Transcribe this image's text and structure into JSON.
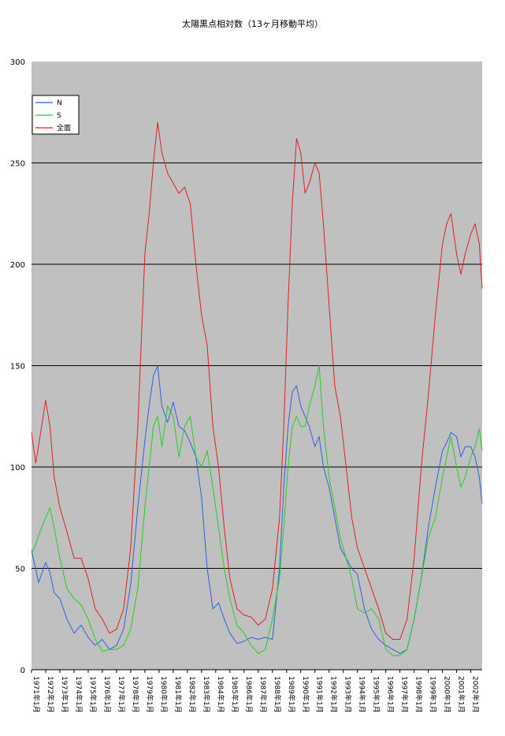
{
  "chart_data": {
    "type": "line",
    "title": "太陽黒点相対数（13ヶ月移動平均）",
    "ylim": [
      0,
      300
    ],
    "yticks": [
      "0",
      "50",
      "100",
      "150",
      "200",
      "250",
      "300"
    ],
    "x_start_year": 1971,
    "x_end_year": 2002.8,
    "x_tick_labels": [
      "1971年1月",
      "1972年1月",
      "1973年1月",
      "1974年1月",
      "1975年1月",
      "1976年1月",
      "1977年1月",
      "1978年1月",
      "1979年1月",
      "1980年1月",
      "1981年1月",
      "1982年1月",
      "1983年1月",
      "1984年1月",
      "1985年1月",
      "1986年1月",
      "1987年1月",
      "1988年1月",
      "1989年1月",
      "1990年1月",
      "1991年1月",
      "1992年1月",
      "1993年1月",
      "1994年1月",
      "1995年1月",
      "1996年1月",
      "1997年1月",
      "1998年1月",
      "1999年1月",
      "2000年1月",
      "2001年1月",
      "2002年1月"
    ],
    "x_tick_years": [
      1971,
      1972,
      1973,
      1974,
      1975,
      1976,
      1977,
      1978,
      1979,
      1980,
      1981,
      1982,
      1983,
      1984,
      1985,
      1986,
      1987,
      1988,
      1989,
      1990,
      1991,
      1992,
      1993,
      1994,
      1995,
      1996,
      1997,
      1998,
      1999,
      2000,
      2001,
      2002
    ],
    "grid": true,
    "legend_position": "top-left",
    "series": [
      {
        "name": "N",
        "color": "#3060e0",
        "x": [
          1971.0,
          1971.5,
          1972.0,
          1972.3,
          1972.6,
          1973.0,
          1973.5,
          1974.0,
          1974.5,
          1975.0,
          1975.5,
          1976.0,
          1976.5,
          1977.0,
          1977.5,
          1978.0,
          1978.5,
          1979.0,
          1979.3,
          1979.6,
          1979.9,
          1980.2,
          1980.6,
          1981.0,
          1981.4,
          1981.8,
          1982.2,
          1982.6,
          1983.0,
          1983.4,
          1983.8,
          1984.2,
          1984.6,
          1985.0,
          1985.5,
          1986.0,
          1986.5,
          1987.0,
          1987.5,
          1988.0,
          1988.5,
          1988.8,
          1989.1,
          1989.4,
          1989.7,
          1990.0,
          1990.3,
          1990.6,
          1991.0,
          1991.3,
          1991.6,
          1992.0,
          1992.4,
          1992.8,
          1993.2,
          1993.6,
          1994.0,
          1994.5,
          1995.0,
          1995.5,
          1996.0,
          1996.5,
          1997.0,
          1997.5,
          1998.0,
          1998.5,
          1999.0,
          1999.5,
          2000.0,
          2000.3,
          2000.6,
          2001.0,
          2001.3,
          2001.6,
          2002.0,
          2002.3,
          2002.6,
          2002.8
        ],
        "values": [
          59,
          43,
          53,
          48,
          38,
          35,
          25,
          18,
          22,
          16,
          12,
          15,
          10,
          12,
          20,
          42,
          80,
          113,
          130,
          145,
          150,
          130,
          122,
          132,
          120,
          118,
          112,
          105,
          85,
          50,
          30,
          33,
          25,
          18,
          13,
          14,
          16,
          15,
          16,
          15,
          50,
          90,
          120,
          137,
          140,
          130,
          125,
          120,
          110,
          115,
          100,
          90,
          75,
          60,
          55,
          50,
          47,
          30,
          20,
          15,
          12,
          10,
          8,
          10,
          25,
          45,
          70,
          90,
          108,
          112,
          117,
          115,
          105,
          110,
          110,
          105,
          95,
          82
        ]
      },
      {
        "name": "S",
        "color": "#20d020",
        "x": [
          1971.0,
          1971.3,
          1971.6,
          1972.0,
          1972.3,
          1972.6,
          1973.0,
          1973.5,
          1974.0,
          1974.5,
          1975.0,
          1975.5,
          1976.0,
          1976.5,
          1977.0,
          1977.5,
          1978.0,
          1978.5,
          1979.0,
          1979.3,
          1979.6,
          1979.9,
          1980.2,
          1980.6,
          1981.0,
          1981.4,
          1981.8,
          1982.2,
          1982.6,
          1983.0,
          1983.4,
          1983.8,
          1984.2,
          1984.6,
          1985.0,
          1985.5,
          1986.0,
          1986.5,
          1987.0,
          1987.5,
          1988.0,
          1988.5,
          1988.8,
          1989.1,
          1989.4,
          1989.7,
          1990.0,
          1990.3,
          1990.6,
          1991.0,
          1991.3,
          1991.6,
          1992.0,
          1992.4,
          1992.8,
          1993.2,
          1993.6,
          1994.0,
          1994.5,
          1995.0,
          1995.5,
          1996.0,
          1996.5,
          1997.0,
          1997.5,
          1998.0,
          1998.5,
          1999.0,
          1999.5,
          2000.0,
          2000.3,
          2000.6,
          2001.0,
          2001.3,
          2001.6,
          2002.0,
          2002.3,
          2002.6,
          2002.8
        ],
        "values": [
          57,
          62,
          68,
          75,
          80,
          70,
          55,
          40,
          35,
          32,
          25,
          15,
          9,
          10,
          10,
          12,
          20,
          40,
          80,
          100,
          120,
          125,
          110,
          130,
          125,
          105,
          120,
          125,
          105,
          100,
          108,
          90,
          70,
          50,
          35,
          22,
          18,
          12,
          8,
          10,
          25,
          45,
          70,
          100,
          120,
          125,
          120,
          120,
          130,
          140,
          150,
          120,
          95,
          80,
          65,
          55,
          45,
          30,
          28,
          30,
          25,
          10,
          7,
          7,
          10,
          25,
          45,
          65,
          75,
          95,
          105,
          115,
          100,
          90,
          95,
          105,
          110,
          119,
          108
        ]
      },
      {
        "name": "全面",
        "color": "#e02020",
        "x": [
          1971.0,
          1971.3,
          1971.6,
          1972.0,
          1972.3,
          1972.6,
          1973.0,
          1973.5,
          1974.0,
          1974.5,
          1975.0,
          1975.5,
          1976.0,
          1976.5,
          1977.0,
          1977.5,
          1978.0,
          1978.5,
          1979.0,
          1979.3,
          1979.6,
          1979.9,
          1980.2,
          1980.6,
          1981.0,
          1981.4,
          1981.8,
          1982.2,
          1982.6,
          1983.0,
          1983.4,
          1983.8,
          1984.2,
          1984.6,
          1985.0,
          1985.5,
          1986.0,
          1986.5,
          1987.0,
          1987.5,
          1988.0,
          1988.5,
          1988.8,
          1989.1,
          1989.4,
          1989.7,
          1990.0,
          1990.3,
          1990.6,
          1991.0,
          1991.3,
          1991.6,
          1992.0,
          1992.4,
          1992.8,
          1993.2,
          1993.6,
          1994.0,
          1994.5,
          1995.0,
          1995.5,
          1996.0,
          1996.5,
          1997.0,
          1997.5,
          1998.0,
          1998.5,
          1999.0,
          1999.5,
          2000.0,
          2000.3,
          2000.6,
          2001.0,
          2001.3,
          2001.6,
          2002.0,
          2002.3,
          2002.6,
          2002.8
        ],
        "values": [
          117,
          102,
          115,
          133,
          120,
          95,
          80,
          68,
          55,
          55,
          45,
          30,
          25,
          18,
          20,
          30,
          60,
          120,
          205,
          225,
          250,
          270,
          255,
          245,
          240,
          235,
          238,
          230,
          200,
          175,
          160,
          120,
          100,
          70,
          45,
          30,
          27,
          26,
          22,
          25,
          40,
          75,
          120,
          180,
          230,
          262,
          255,
          235,
          240,
          250,
          245,
          220,
          180,
          140,
          125,
          100,
          75,
          60,
          50,
          40,
          30,
          18,
          15,
          15,
          25,
          55,
          100,
          135,
          175,
          210,
          220,
          225,
          205,
          195,
          205,
          215,
          220,
          210,
          188
        ]
      }
    ]
  }
}
